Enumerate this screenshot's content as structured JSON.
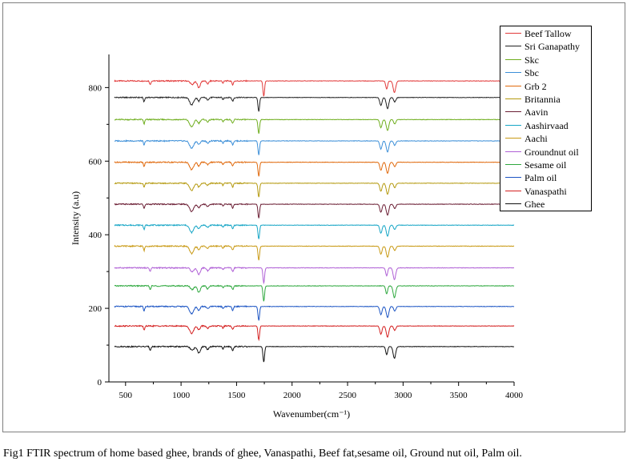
{
  "caption": "Fig1 FTIR spectrum of home based ghee, brands of ghee, Vanaspathi, Beef fat,sesame oil, Ground nut oil, Palm oil.",
  "chart_data": {
    "type": "line",
    "xlabel": "Wavenumber(cm⁻¹)",
    "ylabel": "Intensity (a.u)",
    "xlim": [
      350,
      4000
    ],
    "ylim": [
      0,
      890
    ],
    "x_ticks": [
      500,
      1000,
      1500,
      2000,
      2500,
      3000,
      3500,
      4000
    ],
    "y_ticks": [
      0,
      200,
      400,
      600,
      800
    ],
    "legend_position": "top-right",
    "grid": false,
    "series": [
      {
        "name": "Beef Tallow",
        "color": "#e23a3a",
        "baseline": 818,
        "type": "B"
      },
      {
        "name": "Sri Ganapathy",
        "color": "#222222",
        "baseline": 773,
        "type": "A"
      },
      {
        "name": "Skc",
        "color": "#6fae1e",
        "baseline": 713,
        "type": "A"
      },
      {
        "name": "Sbc",
        "color": "#3c8fd8",
        "baseline": 655,
        "type": "A"
      },
      {
        "name": "Grb 2",
        "color": "#e0690c",
        "baseline": 597,
        "type": "A"
      },
      {
        "name": "Britannia",
        "color": "#b59a10",
        "baseline": 540,
        "type": "A"
      },
      {
        "name": "Aavin",
        "color": "#6b1e34",
        "baseline": 483,
        "type": "A"
      },
      {
        "name": "Aashirvaad",
        "color": "#17a6c6",
        "baseline": 426,
        "type": "A"
      },
      {
        "name": "Aachi",
        "color": "#c99a15",
        "baseline": 369,
        "type": "A"
      },
      {
        "name": "Groundnut oil",
        "color": "#b061d6",
        "baseline": 310,
        "type": "B"
      },
      {
        "name": "Sesame oil",
        "color": "#2ea83e",
        "baseline": 261,
        "type": "B"
      },
      {
        "name": "Palm oil",
        "color": "#1c55c4",
        "baseline": 205,
        "type": "A"
      },
      {
        "name": "Vanaspathi",
        "color": "#d42020",
        "baseline": 152,
        "type": "A"
      },
      {
        "name": "Ghee",
        "color": "#111111",
        "baseline": 96,
        "type": "B"
      }
    ]
  }
}
